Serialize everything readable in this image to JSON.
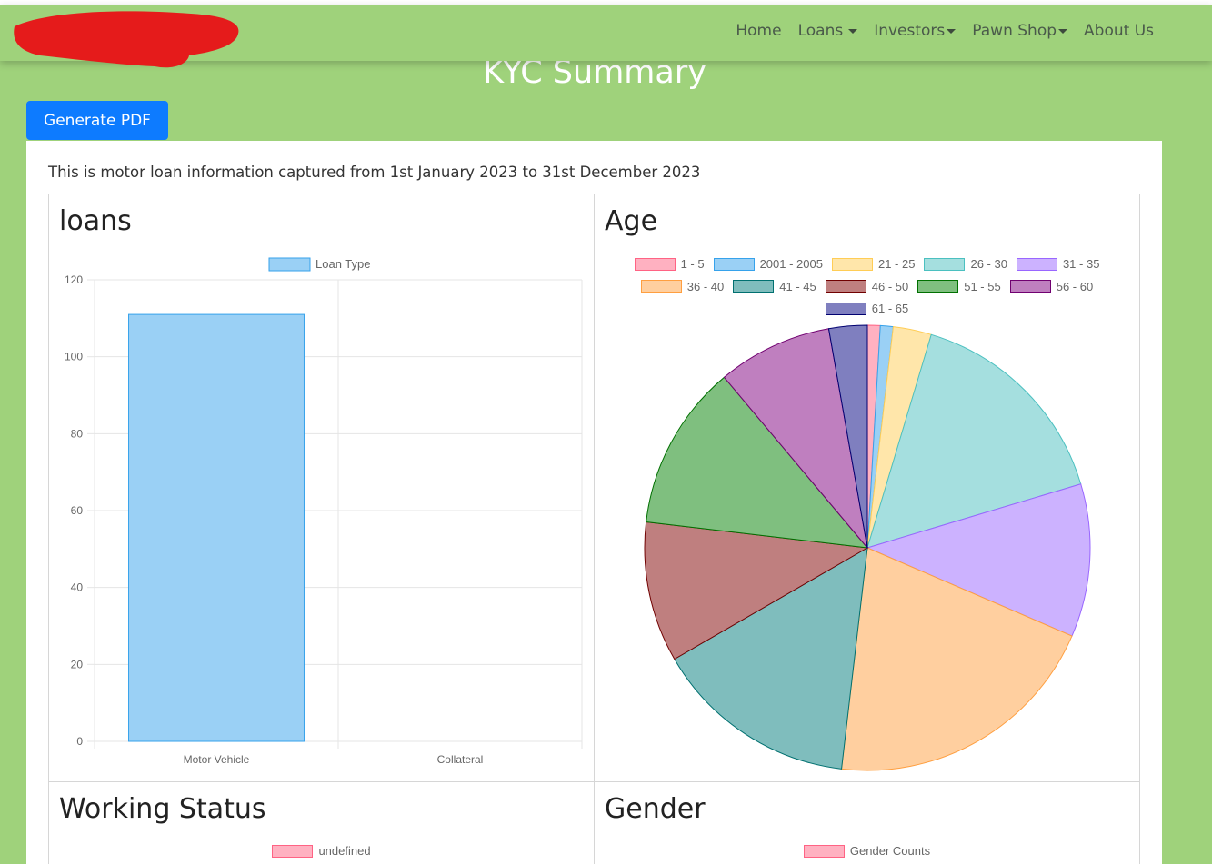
{
  "colors": {
    "page_bg": "#9fd27b",
    "button": "#0d7bff",
    "brand_scribble": "#e51b1b",
    "bar_fill": "#9ad0f5",
    "bar_border": "#36a2eb"
  },
  "nav": {
    "items": [
      {
        "label": "Home",
        "dropdown": false
      },
      {
        "label": "Loans",
        "dropdown": true
      },
      {
        "label": "Investors",
        "dropdown": true
      },
      {
        "label": "Pawn Shop",
        "dropdown": true
      },
      {
        "label": "About Us",
        "dropdown": false
      }
    ]
  },
  "page": {
    "title": "KYC Summary",
    "generate_pdf_label": "Generate PDF",
    "intro": "This is motor loan information captured from 1st January 2023 to 31st December 2023"
  },
  "panels": {
    "loans_title": "loans",
    "age_title": "Age",
    "working_title": "Working Status",
    "gender_title": "Gender",
    "working_legend": "undefined",
    "gender_legend": "Gender Counts"
  },
  "chart_data": [
    {
      "type": "bar",
      "title": "loans",
      "categories": [
        "Motor Vehicle",
        "Collateral"
      ],
      "series": [
        {
          "name": "Loan Type",
          "values": [
            111,
            0
          ]
        }
      ],
      "ylim": [
        0,
        120
      ],
      "yticks": [
        0,
        20,
        40,
        60,
        80,
        100,
        120
      ],
      "grid": true,
      "legend": "top"
    },
    {
      "type": "pie",
      "title": "Age",
      "legend": "top",
      "slices": [
        {
          "label": "1 - 5",
          "value": 1,
          "fill": "#ffb1c1",
          "stroke": "#ff6384"
        },
        {
          "label": "2001 - 2005",
          "value": 1,
          "fill": "#9ad0f5",
          "stroke": "#36a2eb"
        },
        {
          "label": "21 - 25",
          "value": 3,
          "fill": "#ffe6aa",
          "stroke": "#ffcd56"
        },
        {
          "label": "26 - 30",
          "value": 17,
          "fill": "#a5dfdf",
          "stroke": "#4bc0c0"
        },
        {
          "label": "31 - 35",
          "value": 12,
          "fill": "#ccb2ff",
          "stroke": "#9966ff"
        },
        {
          "label": "36 - 40",
          "value": 22,
          "fill": "#ffcf9f",
          "stroke": "#ff9f40"
        },
        {
          "label": "41 - 45",
          "value": 16,
          "fill": "#7fbdbd",
          "stroke": "#007070"
        },
        {
          "label": "46 - 50",
          "value": 11,
          "fill": "#bf7f7f",
          "stroke": "#700000"
        },
        {
          "label": "51 - 55",
          "value": 13,
          "fill": "#7fbf7f",
          "stroke": "#007000"
        },
        {
          "label": "56 - 60",
          "value": 9,
          "fill": "#bf7fbf",
          "stroke": "#700070"
        },
        {
          "label": "61 - 65",
          "value": 3,
          "fill": "#7f7fbf",
          "stroke": "#000070"
        }
      ]
    }
  ]
}
